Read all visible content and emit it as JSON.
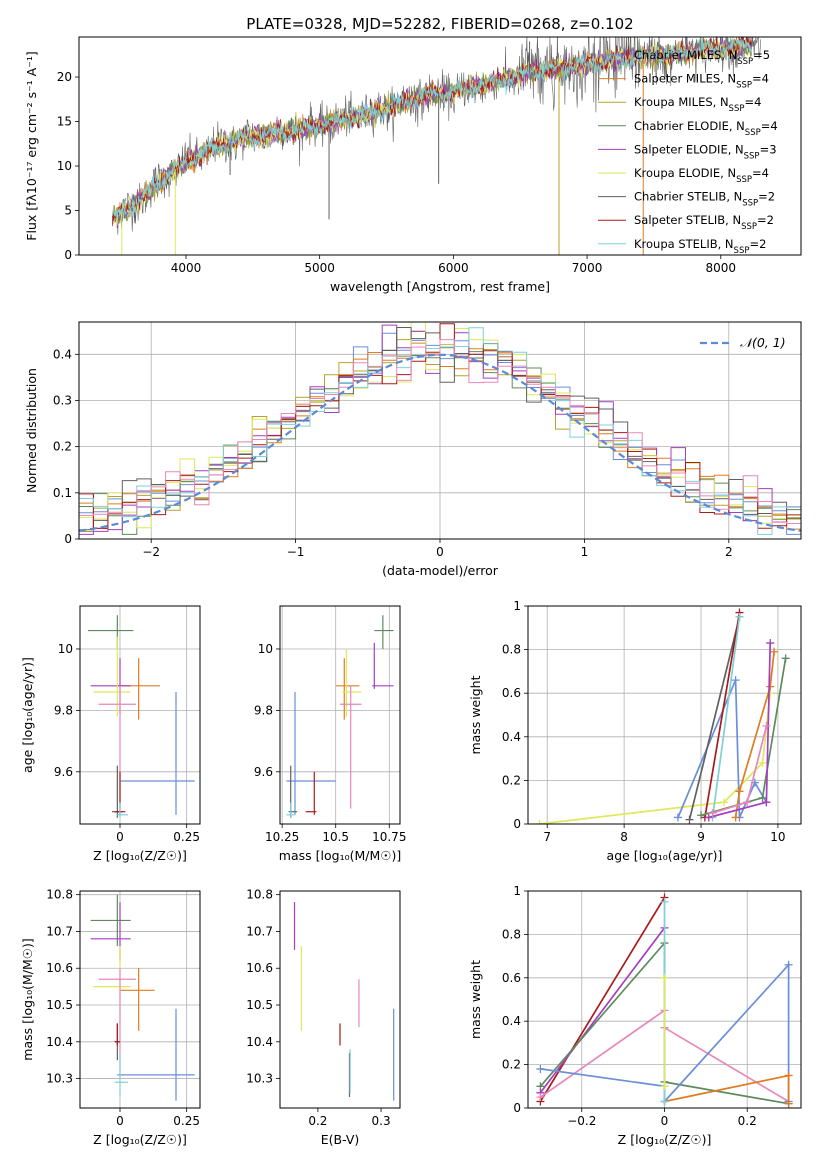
{
  "figure_title": "PLATE=0328, MJD=52282, FIBERID=0268, z=0.102",
  "colors": {
    "Chabrier MILES": "#6a8fd8",
    "Salpeter MILES": "#e07b20",
    "Kroupa MILES": "#b5a428",
    "Chabrier ELODIE": "#5f8a5f",
    "Salpeter ELODIE": "#a43fbf",
    "Kroupa ELODIE": "#dfe85a",
    "Chabrier STELIB": "#606060",
    "Salpeter STELIB": "#a81c1c",
    "Kroupa STELIB": "#7fd0d8",
    "pink": "#e887b9"
  },
  "chart_data": [
    {
      "id": "spectrum",
      "type": "line",
      "title": "PLATE=0328, MJD=52282, FIBERID=0268, z=0.102",
      "xlabel": "wavelength [Angstrom, rest frame]",
      "ylabel": "Flux [fλ10⁻¹⁷ erg cm⁻² s⁻¹ A⁻¹]",
      "xlim": [
        3200,
        8600
      ],
      "ylim": [
        0,
        24.5
      ],
      "xticks": [
        4000,
        5000,
        6000,
        7000,
        8000
      ],
      "yticks": [
        0,
        5,
        10,
        15,
        20
      ],
      "grid": false,
      "legend": "top-right",
      "legend_entries": [
        "Chabrier MILES, N_SSP=5",
        "Salpeter MILES, N_SSP=4",
        "Kroupa MILES, N_SSP=4",
        "Chabrier ELODIE, N_SSP=4",
        "Salpeter ELODIE, N_SSP=3",
        "Kroupa ELODIE, N_SSP=4",
        "Chabrier STELIB, N_SSP=2",
        "Salpeter STELIB, N_SSP=2",
        "Kroupa STELIB, N_SSP=2"
      ],
      "continuum": [
        [
          3450,
          4.2
        ],
        [
          3600,
          5.5
        ],
        [
          3750,
          7.5
        ],
        [
          3900,
          9.5
        ],
        [
          4050,
          10.8
        ],
        [
          4200,
          12.0
        ],
        [
          4400,
          13.0
        ],
        [
          4600,
          13.6
        ],
        [
          4800,
          14.0
        ],
        [
          5000,
          14.5
        ],
        [
          5200,
          15.3
        ],
        [
          5400,
          16.0
        ],
        [
          5600,
          17.0
        ],
        [
          5800,
          18.0
        ],
        [
          6000,
          18.3
        ],
        [
          6200,
          19.0
        ],
        [
          6400,
          19.8
        ],
        [
          6600,
          20.6
        ],
        [
          6800,
          21.0
        ],
        [
          7000,
          21.4
        ],
        [
          7200,
          22.0
        ],
        [
          7400,
          22.3
        ],
        [
          7600,
          22.5
        ],
        [
          7800,
          22.9
        ],
        [
          8000,
          23.2
        ],
        [
          8200,
          23.5
        ]
      ],
      "spikes": [
        [
          3520,
          0
        ],
        [
          3920,
          0
        ],
        [
          6790,
          0
        ],
        [
          7420,
          0
        ],
        [
          5070,
          4
        ],
        [
          5890,
          8
        ],
        [
          4330,
          9
        ],
        [
          6570,
          24
        ]
      ]
    },
    {
      "id": "residuals",
      "type": "line",
      "xlabel": "(data-model)/error",
      "ylabel": "Normed distribution",
      "xlim": [
        -2.5,
        2.5
      ],
      "ylim": [
        0,
        0.47
      ],
      "xticks": [
        -2,
        -1,
        0,
        1,
        2
      ],
      "yticks": [
        0.0,
        0.1,
        0.2,
        0.3,
        0.4
      ],
      "grid": true,
      "legend": "top-right",
      "legend_entries": [
        "𝒩(0, 1)"
      ],
      "bin_width": 0.1,
      "x_start": -2.5
    },
    {
      "id": "age-vs-Z",
      "type": "scatter",
      "xlabel": "Z [log₁₀(Z/Z☉)]",
      "ylabel": "age  [log₁₀(age/yr)]",
      "xlim": [
        -0.15,
        0.3
      ],
      "ylim": [
        9.43,
        10.14
      ],
      "xticks": [
        0.0,
        0.25
      ],
      "yticks": [
        9.6,
        9.8,
        10.0
      ],
      "grid": true,
      "points": [
        {
          "c": "Chabrier MILES",
          "x": 0.21,
          "xe": [
            0.0,
            0.28
          ],
          "y": 9.57,
          "ye": [
            9.46,
            9.86
          ]
        },
        {
          "c": "Salpeter MILES",
          "x": 0.07,
          "xe": [
            -0.01,
            0.15
          ],
          "y": 9.88,
          "ye": [
            9.77,
            9.97
          ]
        },
        {
          "c": "Chabrier ELODIE",
          "x": -0.01,
          "xe": [
            -0.12,
            0.05
          ],
          "y": 10.06,
          "ye": [
            10.0,
            10.11
          ]
        },
        {
          "c": "Salpeter ELODIE",
          "x": 0.0,
          "xe": [
            -0.11,
            0.04
          ],
          "y": 9.88,
          "ye": [
            9.79,
            9.97
          ]
        },
        {
          "c": "Kroupa ELODIE",
          "x": -0.01,
          "xe": [
            -0.1,
            0.04
          ],
          "y": 9.86,
          "ye": [
            9.78,
            10.04
          ]
        },
        {
          "c": "pink",
          "x": 0.0,
          "xe": [
            -0.08,
            0.06
          ],
          "y": 9.82,
          "ye": [
            9.48,
            9.88
          ]
        },
        {
          "c": "Chabrier STELIB",
          "x": -0.01,
          "xe": [
            -0.03,
            0.01
          ],
          "y": 9.47,
          "ye": [
            9.45,
            9.62
          ]
        },
        {
          "c": "Salpeter STELIB",
          "x": 0.0,
          "xe": [
            -0.02,
            0.02
          ],
          "y": 9.47,
          "ye": [
            9.46,
            9.6
          ]
        },
        {
          "c": "Kroupa STELIB",
          "x": 0.0,
          "xe": [
            -0.01,
            0.03
          ],
          "y": 9.46,
          "ye": [
            9.45,
            9.5
          ]
        }
      ]
    },
    {
      "id": "age-vs-mass",
      "type": "scatter",
      "xlabel": "mass [log₁₀(M/M☉)]",
      "ylabel": "",
      "xlim": [
        10.24,
        10.8
      ],
      "ylim": [
        9.43,
        10.14
      ],
      "xticks": [
        10.25,
        10.5,
        10.75
      ],
      "yticks": [
        9.6,
        9.8,
        10.0
      ],
      "grid": true,
      "points": [
        {
          "c": "Chabrier MILES",
          "x": 10.31,
          "xe": [
            10.27,
            10.5
          ],
          "y": 9.57,
          "ye": [
            9.46,
            9.86
          ]
        },
        {
          "c": "Salpeter MILES",
          "x": 10.54,
          "xe": [
            10.5,
            10.61
          ],
          "y": 9.88,
          "ye": [
            9.77,
            9.97
          ]
        },
        {
          "c": "Chabrier ELODIE",
          "x": 10.72,
          "xe": [
            10.68,
            10.77
          ],
          "y": 10.06,
          "ye": [
            10.0,
            10.11
          ]
        },
        {
          "c": "Salpeter ELODIE",
          "x": 10.68,
          "xe": [
            10.67,
            10.77
          ],
          "y": 9.88,
          "ye": [
            9.87,
            10.02
          ]
        },
        {
          "c": "Kroupa ELODIE",
          "x": 10.55,
          "xe": [
            10.53,
            10.62
          ],
          "y": 9.86,
          "ye": [
            9.78,
            10.0
          ]
        },
        {
          "c": "pink",
          "x": 10.57,
          "xe": [
            10.52,
            10.62
          ],
          "y": 9.82,
          "ye": [
            9.48,
            9.88
          ]
        },
        {
          "c": "Chabrier STELIB",
          "x": 10.29,
          "xe": [
            10.28,
            10.32
          ],
          "y": 9.47,
          "ye": [
            9.45,
            9.62
          ]
        },
        {
          "c": "Salpeter STELIB",
          "x": 10.4,
          "xe": [
            10.36,
            10.41
          ],
          "y": 9.47,
          "ye": [
            9.46,
            9.6
          ]
        },
        {
          "c": "Kroupa STELIB",
          "x": 10.29,
          "xe": [
            10.27,
            10.31
          ],
          "y": 9.46,
          "ye": [
            9.45,
            9.5
          ]
        }
      ]
    },
    {
      "id": "weight-vs-age",
      "type": "line",
      "xlabel": "age  [log₁₀(age/yr)]",
      "ylabel": "mass weight",
      "xlim": [
        6.75,
        10.3
      ],
      "ylim": [
        0,
        1.0
      ],
      "xticks": [
        7,
        8,
        9,
        10
      ],
      "yticks": [
        0.0,
        0.2,
        0.4,
        0.6,
        0.8,
        1.0
      ],
      "grid": true,
      "series": [
        {
          "c": "Kroupa ELODIE",
          "points": [
            [
              6.9,
              0.0
            ],
            [
              9.3,
              0.1
            ],
            [
              9.8,
              0.28
            ],
            [
              9.9,
              0.6
            ]
          ]
        },
        {
          "c": "Chabrier MILES",
          "points": [
            [
              8.7,
              0.03
            ],
            [
              9.45,
              0.66
            ],
            [
              9.5,
              0.03
            ],
            [
              9.7,
              0.19
            ],
            [
              9.85,
              0.1
            ]
          ]
        },
        {
          "c": "Chabrier STELIB",
          "points": [
            [
              8.85,
              0.02
            ],
            [
              9.5,
              0.95
            ]
          ]
        },
        {
          "c": "Salpeter STELIB",
          "points": [
            [
              9.05,
              0.03
            ],
            [
              9.5,
              0.97
            ]
          ]
        },
        {
          "c": "Kroupa STELIB",
          "points": [
            [
              9.15,
              0.03
            ],
            [
              9.5,
              0.95
            ]
          ]
        },
        {
          "c": "Salpeter MILES",
          "points": [
            [
              9.45,
              0.03
            ],
            [
              9.5,
              0.15
            ],
            [
              9.9,
              0.63
            ],
            [
              9.95,
              0.79
            ]
          ]
        },
        {
          "c": "Chabrier ELODIE",
          "points": [
            [
              9.0,
              0.04
            ],
            [
              9.8,
              0.12
            ],
            [
              10.1,
              0.76
            ]
          ]
        },
        {
          "c": "Salpeter ELODIE",
          "points": [
            [
              9.1,
              0.03
            ],
            [
              9.85,
              0.1
            ],
            [
              9.9,
              0.83
            ]
          ]
        },
        {
          "c": "pink",
          "points": [
            [
              9.15,
              0.05
            ],
            [
              9.6,
              0.1
            ],
            [
              9.85,
              0.45
            ]
          ]
        }
      ]
    },
    {
      "id": "mass-vs-Z",
      "type": "scatter",
      "xlabel": "Z [log₁₀(Z/Z☉)]",
      "ylabel": "mass [log₁₀(M/M☉)]",
      "xlim": [
        -0.15,
        0.3
      ],
      "ylim": [
        10.22,
        10.81
      ],
      "xticks": [
        0.0,
        0.25
      ],
      "yticks": [
        10.3,
        10.4,
        10.5,
        10.6,
        10.7,
        10.8
      ],
      "grid": true,
      "points": [
        {
          "c": "Chabrier MILES",
          "x": 0.21,
          "xe": [
            -0.01,
            0.28
          ],
          "y": 10.31,
          "ye": [
            10.24,
            10.49
          ]
        },
        {
          "c": "Salpeter MILES",
          "x": 0.07,
          "xe": [
            0.0,
            0.13
          ],
          "y": 10.54,
          "ye": [
            10.43,
            10.6
          ]
        },
        {
          "c": "Chabrier ELODIE",
          "x": -0.01,
          "xe": [
            -0.11,
            0.04
          ],
          "y": 10.73,
          "ye": [
            10.66,
            10.8
          ]
        },
        {
          "c": "Salpeter ELODIE",
          "x": 0.0,
          "xe": [
            -0.11,
            0.04
          ],
          "y": 10.68,
          "ye": [
            10.62,
            10.78
          ]
        },
        {
          "c": "Kroupa ELODIE",
          "x": 0.0,
          "xe": [
            -0.1,
            0.04
          ],
          "y": 10.55,
          "ye": [
            10.45,
            10.66
          ]
        },
        {
          "c": "pink",
          "x": 0.0,
          "xe": [
            -0.08,
            0.06
          ],
          "y": 10.57,
          "ye": [
            10.3,
            10.6
          ]
        },
        {
          "c": "Chabrier STELIB",
          "x": -0.01,
          "xe": [
            -0.02,
            0.0
          ],
          "y": 10.4,
          "ye": [
            10.35,
            10.45
          ]
        },
        {
          "c": "Salpeter STELIB",
          "x": -0.01,
          "xe": [
            -0.02,
            0.0
          ],
          "y": 10.4,
          "ye": [
            10.39,
            10.45
          ]
        },
        {
          "c": "Kroupa STELIB",
          "x": 0.0,
          "xe": [
            -0.02,
            0.03
          ],
          "y": 10.29,
          "ye": [
            10.25,
            10.37
          ]
        }
      ]
    },
    {
      "id": "mass-vs-ebv",
      "type": "scatter",
      "xlabel": "E(B-V)",
      "ylabel": "",
      "xlim": [
        0.14,
        0.33
      ],
      "ylim": [
        10.22,
        10.81
      ],
      "xticks": [
        0.2,
        0.3
      ],
      "yticks": [
        10.3,
        10.4,
        10.5,
        10.6,
        10.7,
        10.8
      ],
      "grid": false,
      "points": [
        {
          "c": "Chabrier MILES",
          "x": 0.32,
          "y": 10.31,
          "ye": [
            10.24,
            10.49
          ]
        },
        {
          "c": "Salpeter ELODIE",
          "x": 0.163,
          "y": 10.68,
          "ye": [
            10.65,
            10.78
          ]
        },
        {
          "c": "Kroupa ELODIE",
          "x": 0.174,
          "y": 10.55,
          "ye": [
            10.43,
            10.66
          ]
        },
        {
          "c": "pink",
          "x": 0.265,
          "y": 10.5,
          "ye": [
            10.44,
            10.57
          ]
        },
        {
          "c": "Salpeter STELIB",
          "x": 0.235,
          "y": 10.4,
          "ye": [
            10.39,
            10.45
          ]
        },
        {
          "c": "Chabrier STELIB",
          "x": 0.25,
          "y": 10.3,
          "ye": [
            10.25,
            10.37
          ]
        },
        {
          "c": "Kroupa STELIB",
          "x": 0.251,
          "y": 10.3,
          "ye": [
            10.26,
            10.38
          ]
        }
      ]
    },
    {
      "id": "weight-vs-Z",
      "type": "line",
      "xlabel": "Z [log₁₀(Z/Z☉)]",
      "ylabel": "mass weight",
      "xlim": [
        -0.33,
        0.33
      ],
      "ylim": [
        0,
        1.0
      ],
      "xticks": [
        -0.2,
        0.0,
        0.2
      ],
      "yticks": [
        0.0,
        0.2,
        0.4,
        0.6,
        0.8,
        1.0
      ],
      "grid": true,
      "series": [
        {
          "c": "Salpeter STELIB",
          "points": [
            [
              -0.3,
              0.03
            ],
            [
              0.0,
              0.97
            ]
          ]
        },
        {
          "c": "Salpeter ELODIE",
          "points": [
            [
              -0.3,
              0.07
            ],
            [
              0.0,
              0.83
            ]
          ]
        },
        {
          "c": "Chabrier ELODIE",
          "points": [
            [
              -0.3,
              0.1
            ],
            [
              0.0,
              0.76
            ],
            [
              0.0,
              0.12
            ],
            [
              0.3,
              0.02
            ]
          ]
        },
        {
          "c": "pink",
          "points": [
            [
              -0.3,
              0.05
            ],
            [
              0.0,
              0.45
            ],
            [
              0.0,
              0.37
            ],
            [
              0.3,
              0.03
            ]
          ]
        },
        {
          "c": "Chabrier MILES",
          "points": [
            [
              -0.3,
              0.18
            ],
            [
              0.0,
              0.1
            ],
            [
              0.0,
              0.03
            ],
            [
              0.3,
              0.66
            ],
            [
              0.3,
              0.03
            ]
          ]
        },
        {
          "c": "Salpeter MILES",
          "points": [
            [
              0.0,
              0.03
            ],
            [
              0.3,
              0.15
            ],
            [
              0.3,
              0.02
            ]
          ]
        },
        {
          "c": "Kroupa STELIB",
          "points": [
            [
              0.0,
              0.03
            ],
            [
              0.0,
              0.95
            ]
          ]
        },
        {
          "c": "Kroupa ELODIE",
          "points": [
            [
              0.0,
              0.1
            ],
            [
              0.0,
              0.6
            ]
          ]
        }
      ]
    }
  ]
}
